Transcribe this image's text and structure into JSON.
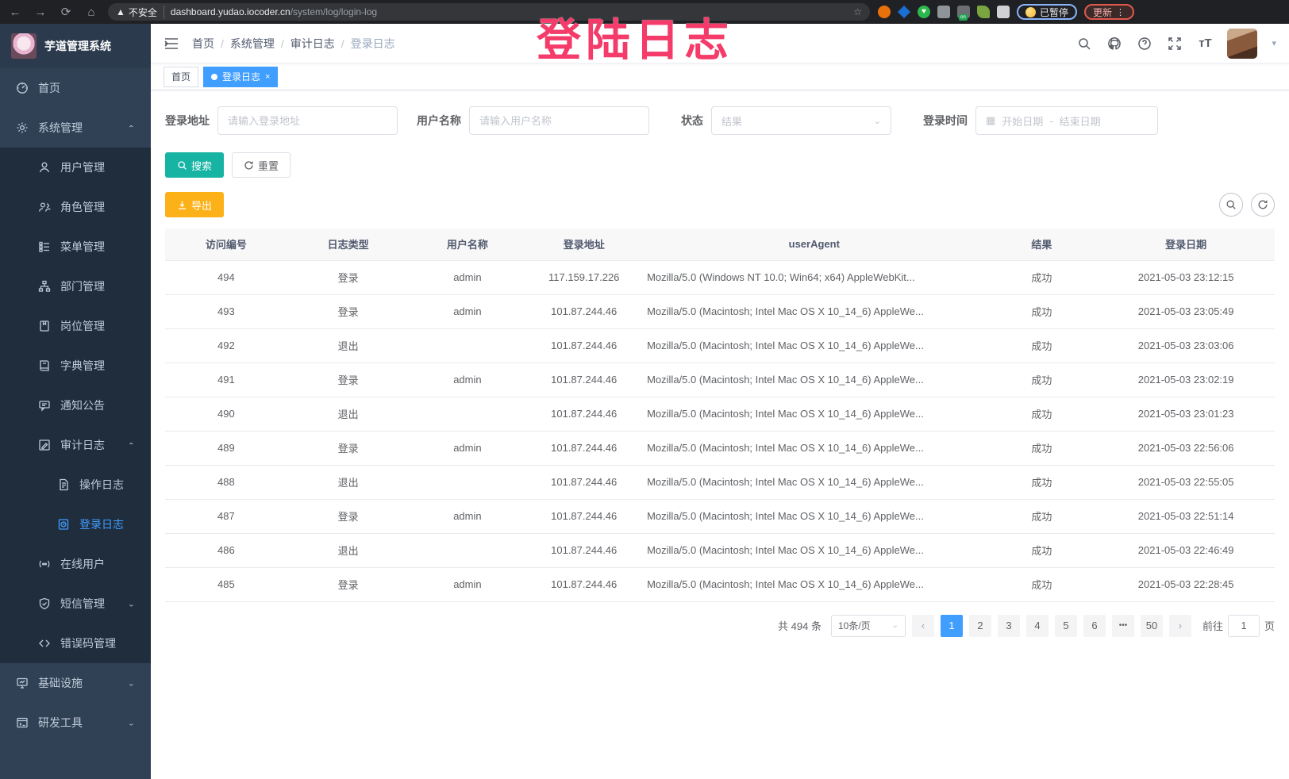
{
  "browser": {
    "security_label": "不安全",
    "url_host": "dashboard.yudao.iocoder.cn",
    "url_path": "/system/log/login-log",
    "paused_label": "已暂停",
    "update_label": "更新"
  },
  "annotation": {
    "title": "登陆日志",
    "color": "#f43b69"
  },
  "sidebar": {
    "app_title": "芋道管理系统",
    "menu": [
      {
        "label": "首页"
      },
      {
        "label": "系统管理"
      },
      {
        "label": "用户管理"
      },
      {
        "label": "角色管理"
      },
      {
        "label": "菜单管理"
      },
      {
        "label": "部门管理"
      },
      {
        "label": "岗位管理"
      },
      {
        "label": "字典管理"
      },
      {
        "label": "通知公告"
      },
      {
        "label": "审计日志"
      },
      {
        "label": "操作日志"
      },
      {
        "label": "登录日志"
      },
      {
        "label": "在线用户"
      },
      {
        "label": "短信管理"
      },
      {
        "label": "错误码管理"
      },
      {
        "label": "基础设施"
      },
      {
        "label": "研发工具"
      }
    ]
  },
  "navbar": {
    "breadcrumb": [
      "首页",
      "系统管理",
      "审计日志",
      "登录日志"
    ]
  },
  "tags": {
    "home": "首页",
    "active": "登录日志"
  },
  "filters": {
    "address": {
      "label": "登录地址",
      "placeholder": "请输入登录地址"
    },
    "username": {
      "label": "用户名称",
      "placeholder": "请输入用户名称"
    },
    "status": {
      "label": "状态",
      "placeholder": "结果"
    },
    "time": {
      "label": "登录时间",
      "start": "开始日期",
      "separator": "-",
      "end": "结束日期"
    }
  },
  "actions": {
    "search": "搜索",
    "reset": "重置",
    "export": "导出"
  },
  "table": {
    "columns": [
      "访问编号",
      "日志类型",
      "用户名称",
      "登录地址",
      "userAgent",
      "结果",
      "登录日期"
    ],
    "rows": [
      [
        "494",
        "登录",
        "admin",
        "117.159.17.226",
        "Mozilla/5.0 (Windows NT 10.0; Win64; x64) AppleWebKit...",
        "成功",
        "2021-05-03 23:12:15"
      ],
      [
        "493",
        "登录",
        "admin",
        "101.87.244.46",
        "Mozilla/5.0 (Macintosh; Intel Mac OS X 10_14_6) AppleWe...",
        "成功",
        "2021-05-03 23:05:49"
      ],
      [
        "492",
        "退出",
        "",
        "101.87.244.46",
        "Mozilla/5.0 (Macintosh; Intel Mac OS X 10_14_6) AppleWe...",
        "成功",
        "2021-05-03 23:03:06"
      ],
      [
        "491",
        "登录",
        "admin",
        "101.87.244.46",
        "Mozilla/5.0 (Macintosh; Intel Mac OS X 10_14_6) AppleWe...",
        "成功",
        "2021-05-03 23:02:19"
      ],
      [
        "490",
        "退出",
        "",
        "101.87.244.46",
        "Mozilla/5.0 (Macintosh; Intel Mac OS X 10_14_6) AppleWe...",
        "成功",
        "2021-05-03 23:01:23"
      ],
      [
        "489",
        "登录",
        "admin",
        "101.87.244.46",
        "Mozilla/5.0 (Macintosh; Intel Mac OS X 10_14_6) AppleWe...",
        "成功",
        "2021-05-03 22:56:06"
      ],
      [
        "488",
        "退出",
        "",
        "101.87.244.46",
        "Mozilla/5.0 (Macintosh; Intel Mac OS X 10_14_6) AppleWe...",
        "成功",
        "2021-05-03 22:55:05"
      ],
      [
        "487",
        "登录",
        "admin",
        "101.87.244.46",
        "Mozilla/5.0 (Macintosh; Intel Mac OS X 10_14_6) AppleWe...",
        "成功",
        "2021-05-03 22:51:14"
      ],
      [
        "486",
        "退出",
        "",
        "101.87.244.46",
        "Mozilla/5.0 (Macintosh; Intel Mac OS X 10_14_6) AppleWe...",
        "成功",
        "2021-05-03 22:46:49"
      ],
      [
        "485",
        "登录",
        "admin",
        "101.87.244.46",
        "Mozilla/5.0 (Macintosh; Intel Mac OS X 10_14_6) AppleWe...",
        "成功",
        "2021-05-03 22:28:45"
      ]
    ]
  },
  "pagination": {
    "total": "共 494 条",
    "page_size": "10条/页",
    "pages": [
      "1",
      "2",
      "3",
      "4",
      "5",
      "6",
      "•••",
      "50"
    ],
    "active": "1",
    "goto_label": "前往",
    "goto_value": "1",
    "unit": "页",
    "accent": "#409eff"
  }
}
